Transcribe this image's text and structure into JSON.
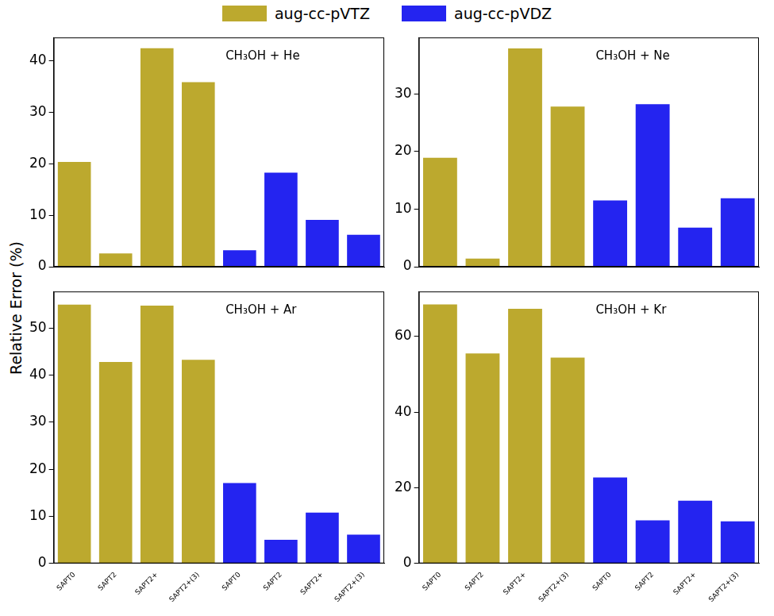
{
  "ylabel": "Relative Error (%)",
  "legend": "top",
  "chart_data": [
    {
      "type": "bar",
      "title": "CH₃OH + He",
      "categories": [
        "SAPT0",
        "SAPT2",
        "SAPT2+",
        "SAPT2+(3)",
        "SAPT0",
        "SAPT2",
        "SAPT2+",
        "SAPT2+(3)"
      ],
      "series": [
        {
          "name": "aug-cc-pVTZ",
          "color": "#bca92e",
          "values": [
            20.4,
            2.6,
            42.5,
            35.9,
            null,
            null,
            null,
            null
          ]
        },
        {
          "name": "aug-cc-pVDZ",
          "color": "#2424f0",
          "values": [
            null,
            null,
            null,
            null,
            3.2,
            18.3,
            9.1,
            6.2
          ]
        }
      ],
      "ylim": [
        0,
        44.6
      ],
      "yticks": [
        0,
        10,
        20,
        30,
        40
      ],
      "grid": false,
      "tick_labels": "y"
    },
    {
      "type": "bar",
      "title": "CH₃OH + Ne",
      "categories": [
        "SAPT0",
        "SAPT2",
        "SAPT2+",
        "SAPT2+(3)",
        "SAPT0",
        "SAPT2",
        "SAPT2+",
        "SAPT2+(3)"
      ],
      "series": [
        {
          "name": "aug-cc-pVTZ",
          "color": "#bca92e",
          "values": [
            18.9,
            1.4,
            37.9,
            27.8,
            null,
            null,
            null,
            null
          ]
        },
        {
          "name": "aug-cc-pVDZ",
          "color": "#2424f0",
          "values": [
            null,
            null,
            null,
            null,
            11.5,
            28.2,
            6.8,
            11.9
          ]
        }
      ],
      "ylim": [
        0,
        39.8
      ],
      "yticks": [
        0,
        10,
        20,
        30
      ],
      "grid": false,
      "tick_labels": "y"
    },
    {
      "type": "bar",
      "title": "CH₃OH + Ar",
      "categories": [
        "SAPT0",
        "SAPT2",
        "SAPT2+",
        "SAPT2+(3)",
        "SAPT0",
        "SAPT2",
        "SAPT2+",
        "SAPT2+(3)"
      ],
      "series": [
        {
          "name": "aug-cc-pVTZ",
          "color": "#bca92e",
          "values": [
            55.0,
            42.8,
            54.8,
            43.3,
            null,
            null,
            null,
            null
          ]
        },
        {
          "name": "aug-cc-pVDZ",
          "color": "#2424f0",
          "values": [
            null,
            null,
            null,
            null,
            17.1,
            5.0,
            10.8,
            6.1
          ]
        }
      ],
      "ylim": [
        0,
        57.8
      ],
      "yticks": [
        0,
        10,
        20,
        30,
        40,
        50
      ],
      "grid": false
    },
    {
      "type": "bar",
      "title": "CH₃OH + Kr",
      "categories": [
        "SAPT0",
        "SAPT2",
        "SAPT2+",
        "SAPT2+(3)",
        "SAPT0",
        "SAPT2",
        "SAPT2+",
        "SAPT2+(3)"
      ],
      "series": [
        {
          "name": "aug-cc-pVTZ",
          "color": "#bca92e",
          "values": [
            68.5,
            55.5,
            67.3,
            54.4,
            null,
            null,
            null,
            null
          ]
        },
        {
          "name": "aug-cc-pVDZ",
          "color": "#2424f0",
          "values": [
            null,
            null,
            null,
            null,
            22.7,
            11.4,
            16.6,
            11.1
          ]
        }
      ],
      "ylim": [
        0,
        71.9
      ],
      "yticks": [
        0,
        20,
        40,
        60
      ],
      "grid": false
    }
  ]
}
